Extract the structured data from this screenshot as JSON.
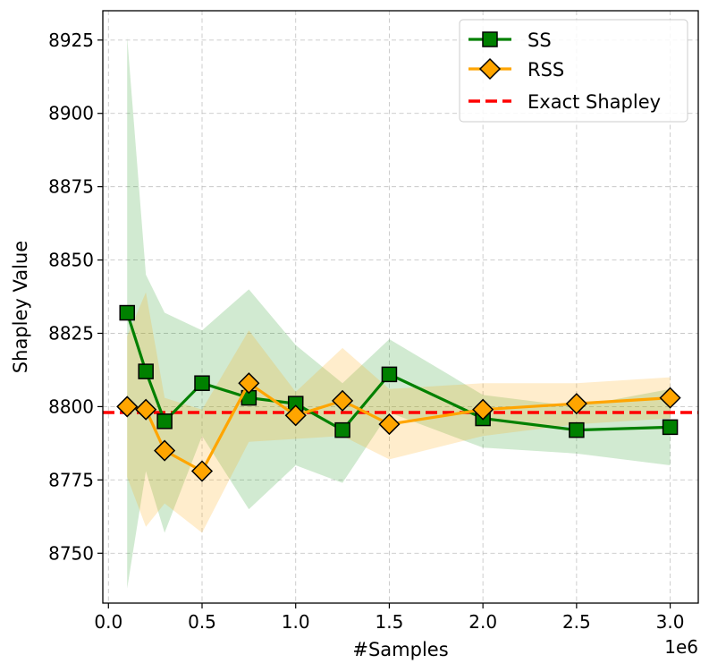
{
  "chart_data": {
    "type": "line",
    "title": "",
    "xlabel": "#Samples",
    "ylabel": "Shapley Value",
    "x_offset_label": "1e6",
    "xlim": [
      -0.03,
      3.15
    ],
    "ylim": [
      8733,
      8935
    ],
    "xticks": [
      0.0,
      0.5,
      1.0,
      1.5,
      2.0,
      2.5,
      3.0
    ],
    "xtick_labels": [
      "0.0",
      "0.5",
      "1.0",
      "1.5",
      "2.0",
      "2.5",
      "3.0"
    ],
    "yticks": [
      8750,
      8775,
      8800,
      8825,
      8850,
      8875,
      8900,
      8925
    ],
    "ytick_labels": [
      "8750",
      "8775",
      "8800",
      "8825",
      "8850",
      "8875",
      "8900",
      "8925"
    ],
    "grid": true,
    "legend_position": "top-right",
    "x": [
      0.1,
      0.2,
      0.3,
      0.5,
      0.75,
      1.0,
      1.25,
      1.5,
      2.0,
      2.5,
      3.0
    ],
    "series": [
      {
        "name": "SS",
        "color": "#008000",
        "band_color": "#2ca02c",
        "marker": "square",
        "values": [
          8832,
          8812,
          8795,
          8808,
          8803,
          8801,
          8792,
          8811,
          8796,
          8792,
          8793
        ],
        "lower": [
          8738,
          8778,
          8757,
          8790,
          8765,
          8780,
          8774,
          8798,
          8786,
          8784,
          8780
        ],
        "upper": [
          8926,
          8845,
          8832,
          8826,
          8840,
          8821,
          8808,
          8823,
          8804,
          8800,
          8806
        ]
      },
      {
        "name": "RSS",
        "color": "#FFA500",
        "band_color": "#FFA500",
        "marker": "diamond",
        "values": [
          8800,
          8799,
          8785,
          8778,
          8808,
          8797,
          8802,
          8794,
          8799,
          8801,
          8803
        ],
        "lower": [
          8776,
          8759,
          8767,
          8757,
          8788,
          8789,
          8790,
          8782,
          8790,
          8794,
          8796
        ],
        "upper": [
          8824,
          8839,
          8803,
          8799,
          8826,
          8805,
          8820,
          8806,
          8808,
          8808,
          8810
        ]
      }
    ],
    "reference_lines": [
      {
        "name": "Exact Shapley",
        "y": 8798,
        "color": "#FF0000",
        "style": "dashed"
      }
    ]
  }
}
